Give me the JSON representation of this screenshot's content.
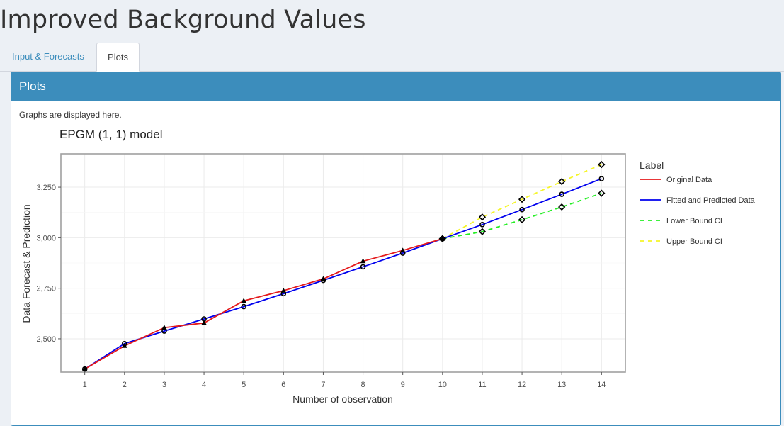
{
  "app": {
    "title": "Improved Background Values"
  },
  "tabs": [
    {
      "label": "Input & Forecasts",
      "active": false
    },
    {
      "label": "Plots",
      "active": true
    }
  ],
  "box": {
    "title": "Plots",
    "description": "Graphs are displayed here.",
    "header_color": "#3c8dbc"
  },
  "chart_data": {
    "type": "line",
    "title": "EPGM (1, 1) model",
    "xlabel": "Number of observation",
    "ylabel": "Data Forecast & Prediction",
    "xlim": [
      0.4,
      14.6
    ],
    "ylim": [
      2335,
      3415
    ],
    "x_ticks": [
      1,
      2,
      3,
      4,
      5,
      6,
      7,
      8,
      9,
      10,
      11,
      12,
      13,
      14
    ],
    "y_ticks": [
      2500,
      2750,
      3000,
      3250
    ],
    "y_tick_labels": [
      "2,500",
      "2,750",
      "3,000",
      "3,250"
    ],
    "grid": true,
    "legend": {
      "title": "Label",
      "position": "right"
    },
    "series": [
      {
        "name": "Original Data",
        "color": "#e41a1c",
        "dash": "solid",
        "marker": "triangle",
        "x": [
          1,
          2,
          3,
          4,
          5,
          6,
          7,
          8,
          9,
          10
        ],
        "y": [
          2350,
          2465,
          2555,
          2578,
          2688,
          2738,
          2796,
          2884,
          2937,
          2995
        ]
      },
      {
        "name": "Fitted and Predicted Data",
        "color": "#0000ee",
        "dash": "solid",
        "marker": "circle",
        "x": [
          1,
          2,
          3,
          4,
          5,
          6,
          7,
          8,
          9,
          10,
          11,
          12,
          13,
          14
        ],
        "y": [
          2350,
          2476,
          2538,
          2598,
          2659,
          2723,
          2789,
          2856,
          2924,
          2995,
          3065,
          3139,
          3215,
          3292
        ]
      },
      {
        "name": "Lower Bound CI",
        "color": "#22ee22",
        "dash": "dashed",
        "marker": "diamond",
        "x": [
          10,
          11,
          12,
          13,
          14
        ],
        "y": [
          2995,
          3030,
          3089,
          3152,
          3220
        ]
      },
      {
        "name": "Upper Bound CI",
        "color": "#f5f528",
        "dash": "dashed",
        "marker": "diamond",
        "x": [
          10,
          11,
          12,
          13,
          14
        ],
        "y": [
          2995,
          3102,
          3190,
          3278,
          3362
        ]
      }
    ]
  }
}
